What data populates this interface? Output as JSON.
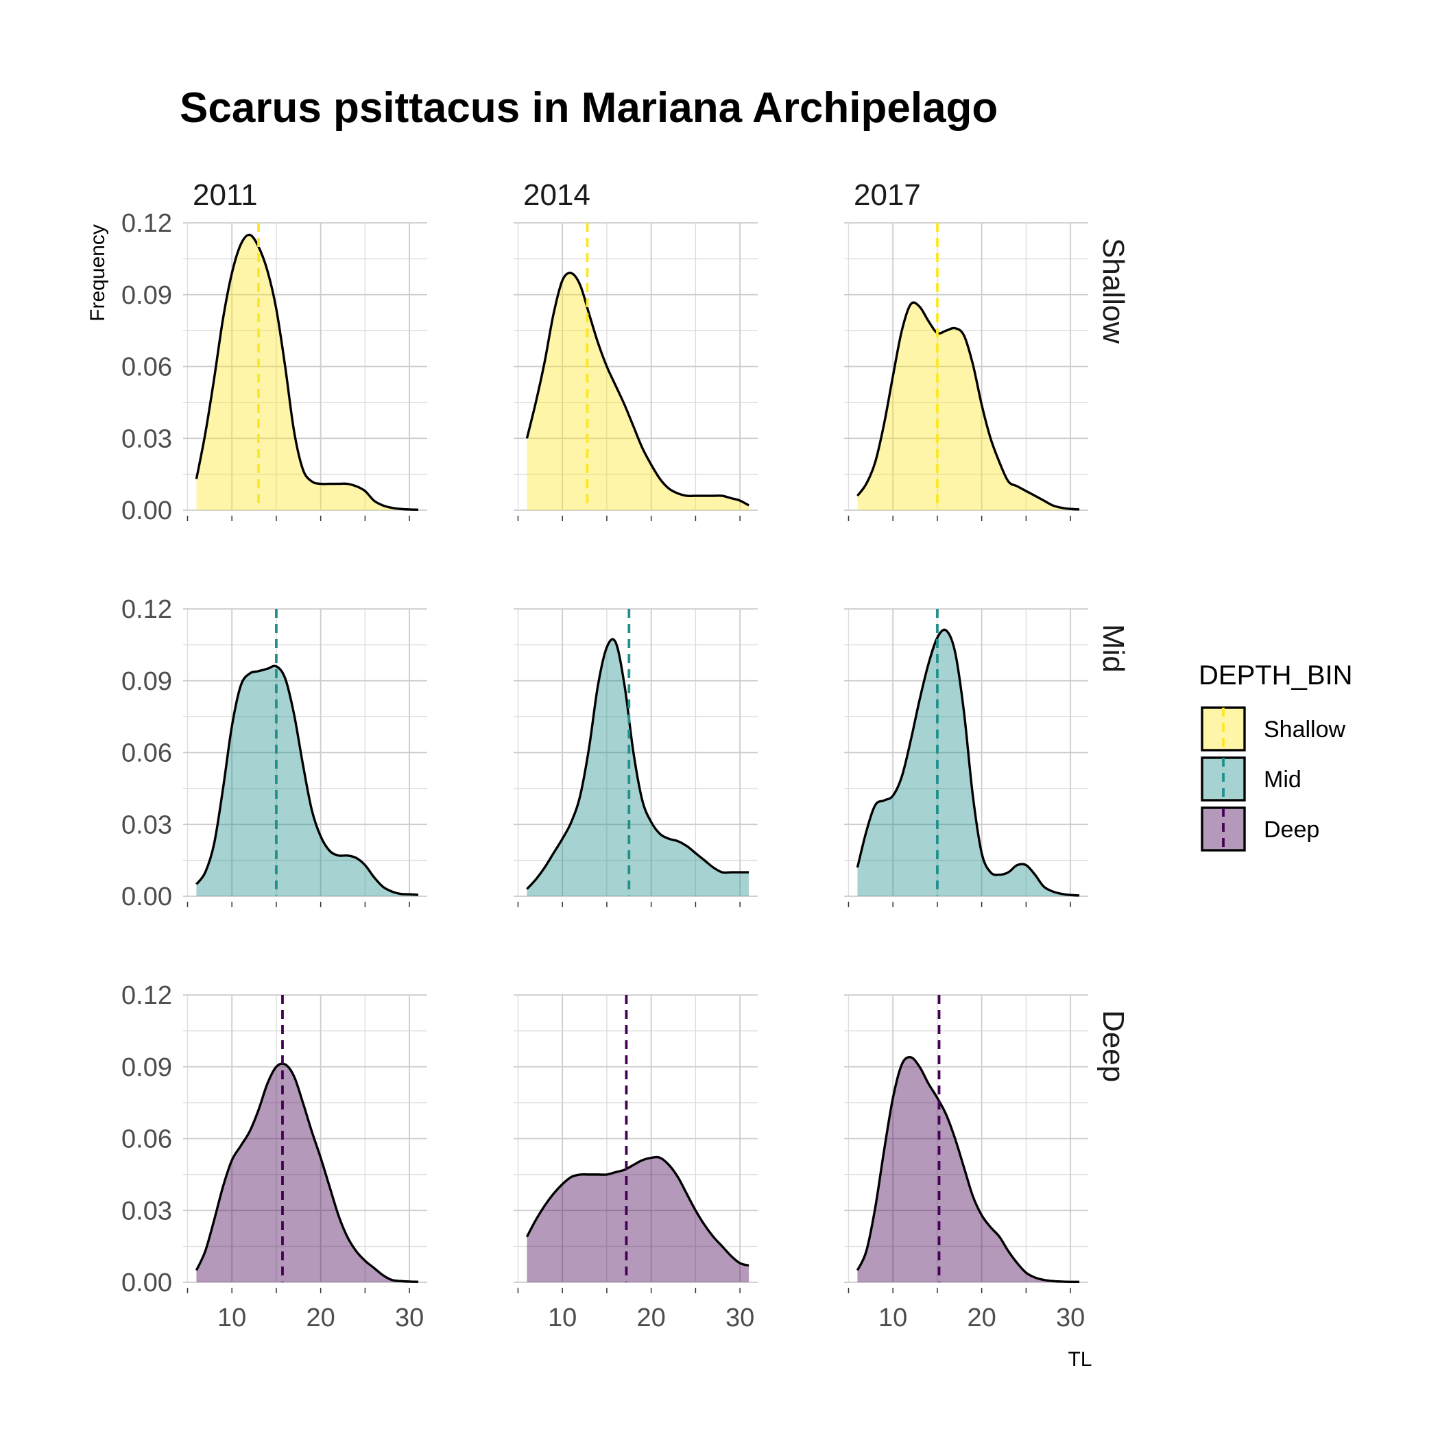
{
  "chart_data": {
    "type": "area",
    "title": "Scarus psittacus in Mariana Archipelago",
    "xlabel": "TL",
    "ylabel": "Frequency",
    "xlim": [
      4.5,
      32
    ],
    "ylim": [
      0,
      0.12
    ],
    "x_ticks": [
      10,
      20,
      30
    ],
    "y_ticks": [
      0.0,
      0.03,
      0.06,
      0.09,
      0.12
    ],
    "y_tick_labels": [
      "0.00",
      "0.03",
      "0.06",
      "0.09",
      "0.12"
    ],
    "x_tick_labels": [
      "10",
      "20",
      "30"
    ],
    "grid": true,
    "facet_columns": [
      "2011",
      "2014",
      "2017"
    ],
    "facet_rows": [
      "Shallow",
      "Mid",
      "Deep"
    ],
    "legend": {
      "title": "DEPTH_BIN",
      "position": "right",
      "entries": [
        {
          "label": "Shallow",
          "fill": "#fde725",
          "line": "#fde725"
        },
        {
          "label": "Mid",
          "fill": "#21908c",
          "line": "#21908c"
        },
        {
          "label": "Deep",
          "fill": "#440154",
          "line": "#440154"
        }
      ]
    },
    "fill_opacity": 0.4,
    "panels": [
      {
        "year": "2011",
        "depth": "Shallow",
        "mean": 13.0,
        "x": [
          6,
          7,
          8,
          9,
          10,
          11,
          12,
          13,
          14,
          15,
          16,
          17,
          18,
          19,
          20,
          21,
          22,
          23,
          24,
          25,
          26,
          27,
          28,
          29,
          30,
          31
        ],
        "y": [
          0.013,
          0.032,
          0.055,
          0.08,
          0.099,
          0.111,
          0.115,
          0.11,
          0.1,
          0.084,
          0.06,
          0.033,
          0.017,
          0.012,
          0.011,
          0.011,
          0.011,
          0.011,
          0.01,
          0.008,
          0.004,
          0.002,
          0.001,
          0.0005,
          0.0003,
          0.0002
        ]
      },
      {
        "year": "2014",
        "depth": "Shallow",
        "mean": 12.8,
        "x": [
          6,
          7,
          8,
          9,
          10,
          11,
          12,
          13,
          14,
          15,
          16,
          17,
          18,
          19,
          20,
          21,
          22,
          23,
          24,
          25,
          26,
          27,
          28,
          29,
          30,
          31
        ],
        "y": [
          0.03,
          0.045,
          0.062,
          0.082,
          0.096,
          0.099,
          0.094,
          0.082,
          0.07,
          0.06,
          0.052,
          0.044,
          0.035,
          0.026,
          0.019,
          0.013,
          0.009,
          0.007,
          0.006,
          0.006,
          0.006,
          0.006,
          0.006,
          0.005,
          0.004,
          0.002
        ]
      },
      {
        "year": "2017",
        "depth": "Shallow",
        "mean": 15.0,
        "x": [
          6,
          7,
          8,
          9,
          10,
          11,
          12,
          13,
          14,
          15,
          16,
          17,
          18,
          19,
          20,
          21,
          22,
          23,
          24,
          25,
          26,
          27,
          28,
          29,
          30,
          31
        ],
        "y": [
          0.006,
          0.011,
          0.02,
          0.036,
          0.056,
          0.075,
          0.086,
          0.085,
          0.079,
          0.074,
          0.075,
          0.076,
          0.073,
          0.061,
          0.044,
          0.03,
          0.02,
          0.012,
          0.01,
          0.008,
          0.006,
          0.004,
          0.002,
          0.001,
          0.0005,
          0.0003
        ]
      },
      {
        "year": "2011",
        "depth": "Mid",
        "mean": 15.0,
        "x": [
          6,
          7,
          8,
          9,
          10,
          11,
          12,
          13,
          14,
          15,
          16,
          17,
          18,
          19,
          20,
          21,
          22,
          23,
          24,
          25,
          26,
          27,
          28,
          29,
          30,
          31
        ],
        "y": [
          0.005,
          0.01,
          0.022,
          0.045,
          0.071,
          0.088,
          0.093,
          0.094,
          0.095,
          0.096,
          0.091,
          0.076,
          0.055,
          0.036,
          0.025,
          0.019,
          0.017,
          0.017,
          0.016,
          0.013,
          0.008,
          0.004,
          0.002,
          0.001,
          0.0008,
          0.0006
        ]
      },
      {
        "year": "2014",
        "depth": "Mid",
        "mean": 17.5,
        "x": [
          6,
          7,
          8,
          9,
          10,
          11,
          12,
          13,
          14,
          15,
          16,
          17,
          18,
          19,
          20,
          21,
          22,
          23,
          24,
          25,
          26,
          27,
          28,
          29,
          30,
          31
        ],
        "y": [
          0.003,
          0.007,
          0.012,
          0.018,
          0.024,
          0.031,
          0.042,
          0.062,
          0.088,
          0.104,
          0.106,
          0.088,
          0.06,
          0.04,
          0.031,
          0.026,
          0.024,
          0.023,
          0.021,
          0.018,
          0.015,
          0.012,
          0.01,
          0.01,
          0.01,
          0.01
        ]
      },
      {
        "year": "2017",
        "depth": "Mid",
        "mean": 15.0,
        "x": [
          6,
          7,
          8,
          9,
          10,
          11,
          12,
          13,
          14,
          15,
          16,
          17,
          18,
          19,
          20,
          21,
          22,
          23,
          24,
          25,
          26,
          27,
          28,
          29,
          30,
          31
        ],
        "y": [
          0.012,
          0.027,
          0.038,
          0.04,
          0.042,
          0.05,
          0.065,
          0.082,
          0.097,
          0.108,
          0.111,
          0.102,
          0.077,
          0.042,
          0.018,
          0.01,
          0.009,
          0.01,
          0.013,
          0.013,
          0.009,
          0.004,
          0.002,
          0.001,
          0.0005,
          0.0003
        ]
      },
      {
        "year": "2011",
        "depth": "Deep",
        "mean": 15.7,
        "x": [
          6,
          7,
          8,
          9,
          10,
          11,
          12,
          13,
          14,
          15,
          16,
          17,
          18,
          19,
          20,
          21,
          22,
          23,
          24,
          25,
          26,
          27,
          28,
          29,
          30,
          31
        ],
        "y": [
          0.005,
          0.013,
          0.026,
          0.04,
          0.051,
          0.057,
          0.063,
          0.072,
          0.083,
          0.09,
          0.091,
          0.086,
          0.075,
          0.063,
          0.052,
          0.04,
          0.028,
          0.019,
          0.013,
          0.009,
          0.006,
          0.003,
          0.001,
          0.0005,
          0.0003,
          0.0002
        ]
      },
      {
        "year": "2014",
        "depth": "Deep",
        "mean": 17.2,
        "x": [
          6,
          7,
          8,
          9,
          10,
          11,
          12,
          13,
          14,
          15,
          16,
          17,
          18,
          19,
          20,
          21,
          22,
          23,
          24,
          25,
          26,
          27,
          28,
          29,
          30,
          31
        ],
        "y": [
          0.019,
          0.026,
          0.032,
          0.037,
          0.041,
          0.044,
          0.045,
          0.045,
          0.045,
          0.045,
          0.046,
          0.047,
          0.049,
          0.051,
          0.052,
          0.052,
          0.049,
          0.044,
          0.037,
          0.03,
          0.024,
          0.019,
          0.015,
          0.011,
          0.008,
          0.007
        ]
      },
      {
        "year": "2017",
        "depth": "Deep",
        "mean": 15.2,
        "x": [
          6,
          7,
          8,
          9,
          10,
          11,
          12,
          13,
          14,
          15,
          16,
          17,
          18,
          19,
          20,
          21,
          22,
          23,
          24,
          25,
          26,
          27,
          28,
          29,
          30,
          31
        ],
        "y": [
          0.005,
          0.013,
          0.031,
          0.055,
          0.077,
          0.091,
          0.094,
          0.09,
          0.083,
          0.077,
          0.07,
          0.06,
          0.048,
          0.036,
          0.028,
          0.023,
          0.019,
          0.013,
          0.008,
          0.004,
          0.002,
          0.001,
          0.0005,
          0.0003,
          0.0002,
          0.0002
        ]
      }
    ]
  }
}
